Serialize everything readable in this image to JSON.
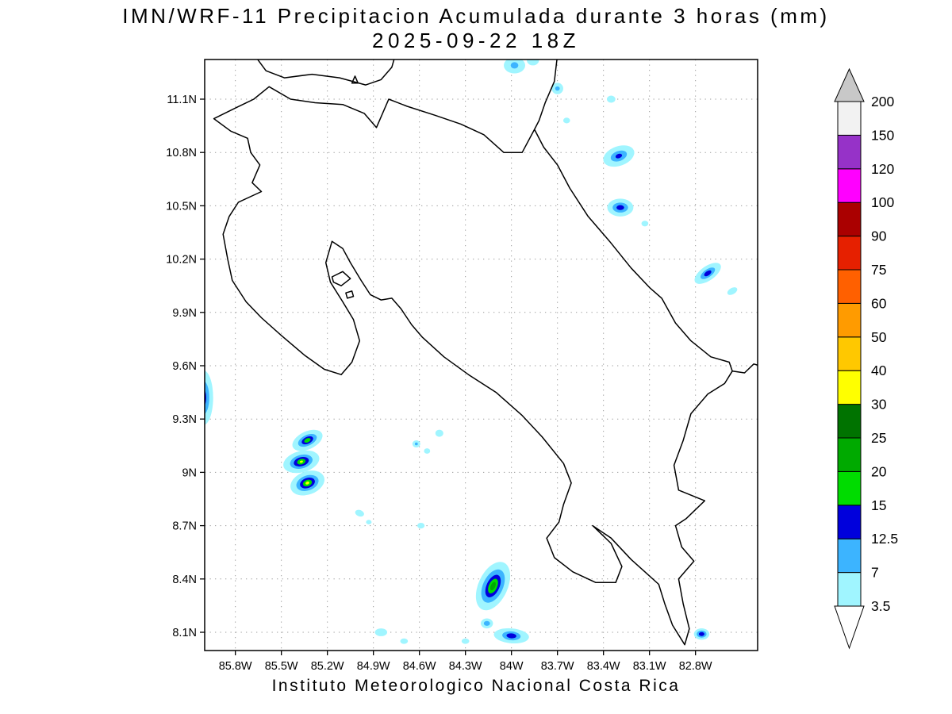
{
  "title_line1": "IMN/WRF-11 Precipitacion Acumulada durante 3 horas (mm)",
  "title_line2": "2025-09-22 18Z",
  "caption": "Instituto Meteorologico Nacional Costa Rica",
  "chart_data": {
    "type": "heatmap",
    "title": "IMN/WRF-11 Precipitacion Acumulada durante 3 horas (mm)",
    "subtitle": "2025-09-22 18Z",
    "units": "mm",
    "region": "Costa Rica",
    "lon_range_deg_w": [
      86.0,
      82.4
    ],
    "lat_range_deg_n": [
      8.0,
      11.32
    ],
    "grid": "dotted",
    "legend_position": "right",
    "lat_ticks": [
      {
        "v": 8.1,
        "label": "8.1N"
      },
      {
        "v": 8.4,
        "label": "8.4N"
      },
      {
        "v": 8.7,
        "label": "8.7N"
      },
      {
        "v": 9.0,
        "label": "9N"
      },
      {
        "v": 9.3,
        "label": "9.3N"
      },
      {
        "v": 9.6,
        "label": "9.6N"
      },
      {
        "v": 9.9,
        "label": "9.9N"
      },
      {
        "v": 10.2,
        "label": "10.2N"
      },
      {
        "v": 10.5,
        "label": "10.5N"
      },
      {
        "v": 10.8,
        "label": "10.8N"
      },
      {
        "v": 11.1,
        "label": "11.1N"
      }
    ],
    "lon_ticks": [
      {
        "v": 85.8,
        "label": "85.8W"
      },
      {
        "v": 85.5,
        "label": "85.5W"
      },
      {
        "v": 85.2,
        "label": "85.2W"
      },
      {
        "v": 84.9,
        "label": "84.9W"
      },
      {
        "v": 84.6,
        "label": "84.6W"
      },
      {
        "v": 84.3,
        "label": "84.3W"
      },
      {
        "v": 84.0,
        "label": "84W"
      },
      {
        "v": 83.7,
        "label": "83.7W"
      },
      {
        "v": 83.4,
        "label": "83.4W"
      },
      {
        "v": 83.1,
        "label": "83.1W"
      },
      {
        "v": 82.8,
        "label": "82.8W"
      }
    ],
    "colorbar_levels": [
      3.5,
      7,
      12.5,
      15,
      20,
      25,
      30,
      40,
      50,
      60,
      75,
      90,
      100,
      120,
      150,
      200
    ],
    "colorbar_colors": [
      "#A0F5FF",
      "#3CB4FF",
      "#0000DC",
      "#00DC00",
      "#00AA00",
      "#007300",
      "#FFFF00",
      "#FFC800",
      "#FF9B00",
      "#FF6000",
      "#E62000",
      "#AA0000",
      "#FF00FF",
      "#9632C8",
      "#F2F2F2"
    ],
    "colorbar_above_color": "#C8C8C8",
    "colorbar_below_color": "#FFFFFF",
    "precip_cells": [
      {
        "lon": 86.01,
        "lat": 9.42,
        "rot": 0,
        "layers": [
          [
            3.5,
            0.065,
            0.155
          ],
          [
            7,
            0.04,
            0.095
          ],
          [
            12.5,
            0.02,
            0.048
          ]
        ]
      },
      {
        "lon": 85.33,
        "lat": 9.18,
        "rot": -25,
        "layers": [
          [
            3.5,
            0.105,
            0.05
          ],
          [
            7,
            0.065,
            0.03
          ],
          [
            12.5,
            0.04,
            0.019
          ],
          [
            15,
            0.022,
            0.011
          ]
        ]
      },
      {
        "lon": 85.37,
        "lat": 9.06,
        "rot": -15,
        "layers": [
          [
            3.5,
            0.12,
            0.06
          ],
          [
            7,
            0.075,
            0.038
          ],
          [
            12.5,
            0.05,
            0.025
          ],
          [
            15,
            0.028,
            0.015
          ],
          [
            30,
            0.011,
            0.006
          ]
        ]
      },
      {
        "lon": 85.33,
        "lat": 8.94,
        "rot": -20,
        "layers": [
          [
            3.5,
            0.115,
            0.065
          ],
          [
            7,
            0.075,
            0.042
          ],
          [
            12.5,
            0.05,
            0.028
          ],
          [
            15,
            0.03,
            0.018
          ],
          [
            30,
            0.013,
            0.008
          ]
        ]
      },
      {
        "lon": 84.12,
        "lat": 8.36,
        "rot": 25,
        "layers": [
          [
            3.5,
            0.095,
            0.145
          ],
          [
            7,
            0.065,
            0.1
          ],
          [
            12.5,
            0.042,
            0.068
          ],
          [
            15,
            0.027,
            0.044
          ],
          [
            20,
            0.015,
            0.025
          ]
        ]
      },
      {
        "lon": 83.3,
        "lat": 10.78,
        "rot": -20,
        "layers": [
          [
            3.5,
            0.105,
            0.055
          ],
          [
            7,
            0.055,
            0.028
          ],
          [
            12.5,
            0.022,
            0.012
          ]
        ]
      },
      {
        "lon": 83.29,
        "lat": 10.49,
        "rot": 0,
        "layers": [
          [
            3.5,
            0.085,
            0.05
          ],
          [
            7,
            0.05,
            0.028
          ],
          [
            12.5,
            0.025,
            0.014
          ]
        ]
      },
      {
        "lon": 82.72,
        "lat": 10.12,
        "rot": -35,
        "layers": [
          [
            3.5,
            0.1,
            0.04
          ],
          [
            7,
            0.055,
            0.022
          ],
          [
            12.5,
            0.027,
            0.012
          ]
        ]
      },
      {
        "lon": 84.0,
        "lat": 8.08,
        "rot": 5,
        "layers": [
          [
            3.5,
            0.115,
            0.042
          ],
          [
            7,
            0.06,
            0.025
          ],
          [
            12.5,
            0.032,
            0.014
          ]
        ]
      },
      {
        "lon": 82.76,
        "lat": 8.09,
        "rot": 0,
        "layers": [
          [
            3.5,
            0.05,
            0.032
          ],
          [
            7,
            0.032,
            0.02
          ],
          [
            12.5,
            0.018,
            0.011
          ]
        ]
      },
      {
        "lon": 84.16,
        "lat": 8.15,
        "rot": 0,
        "layers": [
          [
            3.5,
            0.04,
            0.028
          ],
          [
            7,
            0.02,
            0.014
          ]
        ]
      },
      {
        "lon": 83.98,
        "lat": 11.29,
        "rot": 0,
        "layers": [
          [
            3.5,
            0.07,
            0.045
          ],
          [
            7,
            0.025,
            0.018
          ]
        ]
      },
      {
        "lon": 83.86,
        "lat": 11.32,
        "rot": 0,
        "layers": [
          [
            3.5,
            0.04,
            0.03
          ]
        ]
      },
      {
        "lon": 83.7,
        "lat": 11.16,
        "rot": 0,
        "layers": [
          [
            3.5,
            0.038,
            0.032
          ],
          [
            7,
            0.015,
            0.012
          ]
        ]
      },
      {
        "lon": 83.64,
        "lat": 10.98,
        "rot": 0,
        "layers": [
          [
            3.5,
            0.022,
            0.016
          ]
        ]
      },
      {
        "lon": 83.35,
        "lat": 11.1,
        "rot": 0,
        "layers": [
          [
            3.5,
            0.028,
            0.02
          ]
        ]
      },
      {
        "lon": 83.13,
        "lat": 10.4,
        "rot": 0,
        "layers": [
          [
            3.5,
            0.022,
            0.016
          ]
        ]
      },
      {
        "lon": 82.56,
        "lat": 10.02,
        "rot": -30,
        "layers": [
          [
            3.5,
            0.035,
            0.018
          ]
        ]
      },
      {
        "lon": 84.47,
        "lat": 9.22,
        "rot": 0,
        "layers": [
          [
            3.5,
            0.026,
            0.02
          ]
        ]
      },
      {
        "lon": 84.62,
        "lat": 9.16,
        "rot": 0,
        "layers": [
          [
            3.5,
            0.026,
            0.02
          ],
          [
            7,
            0.01,
            0.008
          ]
        ]
      },
      {
        "lon": 84.55,
        "lat": 9.12,
        "rot": 0,
        "layers": [
          [
            3.5,
            0.02,
            0.015
          ]
        ]
      },
      {
        "lon": 84.99,
        "lat": 8.77,
        "rot": 20,
        "layers": [
          [
            3.5,
            0.03,
            0.018
          ]
        ]
      },
      {
        "lon": 84.93,
        "lat": 8.72,
        "rot": 0,
        "layers": [
          [
            3.5,
            0.018,
            0.013
          ]
        ]
      },
      {
        "lon": 84.59,
        "lat": 8.7,
        "rot": 0,
        "layers": [
          [
            3.5,
            0.024,
            0.016
          ]
        ]
      },
      {
        "lon": 84.85,
        "lat": 8.1,
        "rot": 0,
        "layers": [
          [
            3.5,
            0.04,
            0.022
          ]
        ]
      },
      {
        "lon": 84.7,
        "lat": 8.05,
        "rot": 0,
        "layers": [
          [
            3.5,
            0.025,
            0.015
          ]
        ]
      },
      {
        "lon": 84.3,
        "lat": 8.05,
        "rot": 0,
        "layers": [
          [
            3.5,
            0.025,
            0.015
          ]
        ]
      }
    ],
    "coastline": {
      "costa_rica": [
        [
          85.94,
          10.99
        ],
        [
          85.8,
          11.05
        ],
        [
          85.68,
          11.1
        ],
        [
          85.58,
          11.17
        ],
        [
          85.44,
          11.1
        ],
        [
          85.28,
          11.08
        ],
        [
          85.1,
          11.07
        ],
        [
          84.96,
          11.02
        ],
        [
          84.88,
          10.94
        ],
        [
          84.8,
          11.1
        ],
        [
          84.68,
          11.06
        ],
        [
          84.5,
          11.01
        ],
        [
          84.33,
          10.96
        ],
        [
          84.18,
          10.9
        ],
        [
          84.05,
          10.8
        ],
        [
          83.93,
          10.8
        ],
        [
          83.85,
          10.93
        ],
        [
          83.79,
          10.83
        ],
        [
          83.7,
          10.73
        ],
        [
          83.62,
          10.6
        ],
        [
          83.5,
          10.44
        ],
        [
          83.36,
          10.3
        ],
        [
          83.22,
          10.15
        ],
        [
          83.1,
          10.04
        ],
        [
          83.02,
          9.98
        ],
        [
          82.93,
          9.84
        ],
        [
          82.83,
          9.74
        ],
        [
          82.7,
          9.65
        ],
        [
          82.58,
          9.62
        ],
        [
          82.56,
          9.57
        ],
        [
          82.61,
          9.5
        ],
        [
          82.72,
          9.44
        ],
        [
          82.83,
          9.33
        ],
        [
          82.88,
          9.18
        ],
        [
          82.94,
          9.04
        ],
        [
          82.91,
          8.9
        ],
        [
          82.74,
          8.84
        ],
        [
          82.86,
          8.74
        ],
        [
          82.93,
          8.7
        ],
        [
          82.89,
          8.58
        ],
        [
          82.81,
          8.5
        ],
        [
          82.91,
          8.4
        ],
        [
          82.88,
          8.26
        ],
        [
          82.84,
          8.12
        ],
        [
          82.87,
          8.03
        ],
        [
          82.95,
          8.14
        ],
        [
          83.0,
          8.26
        ],
        [
          83.04,
          8.37
        ],
        [
          83.13,
          8.44
        ],
        [
          83.22,
          8.51
        ],
        [
          83.35,
          8.63
        ],
        [
          83.47,
          8.7
        ],
        [
          83.35,
          8.6
        ],
        [
          83.28,
          8.47
        ],
        [
          83.32,
          8.38
        ],
        [
          83.45,
          8.38
        ],
        [
          83.6,
          8.44
        ],
        [
          83.72,
          8.52
        ],
        [
          83.77,
          8.63
        ],
        [
          83.69,
          8.72
        ],
        [
          83.66,
          8.82
        ],
        [
          83.61,
          8.94
        ],
        [
          83.66,
          9.05
        ],
        [
          83.8,
          9.2
        ],
        [
          83.93,
          9.32
        ],
        [
          84.1,
          9.45
        ],
        [
          84.28,
          9.55
        ],
        [
          84.44,
          9.65
        ],
        [
          84.58,
          9.76
        ],
        [
          84.65,
          9.83
        ],
        [
          84.72,
          9.92
        ],
        [
          84.78,
          9.98
        ],
        [
          84.85,
          9.97
        ],
        [
          84.92,
          10.0
        ],
        [
          84.98,
          10.08
        ],
        [
          85.05,
          10.18
        ],
        [
          85.1,
          10.26
        ],
        [
          85.17,
          10.3
        ],
        [
          85.21,
          10.18
        ],
        [
          85.18,
          10.07
        ],
        [
          85.1,
          9.96
        ],
        [
          85.03,
          9.86
        ],
        [
          84.99,
          9.74
        ],
        [
          85.04,
          9.62
        ],
        [
          85.11,
          9.55
        ],
        [
          85.22,
          9.58
        ],
        [
          85.35,
          9.66
        ],
        [
          85.5,
          9.77
        ],
        [
          85.63,
          9.87
        ],
        [
          85.73,
          9.96
        ],
        [
          85.82,
          10.08
        ],
        [
          85.85,
          10.2
        ],
        [
          85.88,
          10.34
        ],
        [
          85.84,
          10.44
        ],
        [
          85.78,
          10.52
        ],
        [
          85.63,
          10.58
        ],
        [
          85.69,
          10.63
        ],
        [
          85.64,
          10.73
        ],
        [
          85.7,
          10.8
        ],
        [
          85.72,
          10.88
        ],
        [
          85.83,
          10.92
        ]
      ],
      "nicaragua_coast": [
        [
          83.7,
          11.35
        ],
        [
          83.72,
          11.2
        ],
        [
          83.78,
          11.08
        ],
        [
          83.82,
          10.98
        ],
        [
          83.85,
          10.93
        ]
      ],
      "lake_nicaragua_shore": [
        [
          85.72,
          11.4
        ],
        [
          85.6,
          11.26
        ],
        [
          85.48,
          11.22
        ],
        [
          85.3,
          11.24
        ],
        [
          85.12,
          11.22
        ],
        [
          84.95,
          11.18
        ],
        [
          84.85,
          11.21
        ],
        [
          84.78,
          11.28
        ],
        [
          84.74,
          11.4
        ]
      ],
      "panama_coast": [
        [
          82.56,
          9.57
        ],
        [
          82.48,
          9.56
        ],
        [
          82.42,
          9.61
        ],
        [
          82.38,
          9.6
        ]
      ],
      "islands": [
        [
          [
            85.17,
            10.1
          ],
          [
            85.1,
            10.13
          ],
          [
            85.05,
            10.09
          ],
          [
            85.11,
            10.05
          ],
          [
            85.16,
            10.07
          ]
        ],
        [
          [
            85.04,
            11.19
          ],
          [
            85.0,
            11.19
          ],
          [
            85.02,
            11.23
          ]
        ],
        [
          [
            85.08,
            10.01
          ],
          [
            85.04,
            10.02
          ],
          [
            85.03,
            9.99
          ],
          [
            85.07,
            9.98
          ]
        ]
      ]
    }
  }
}
